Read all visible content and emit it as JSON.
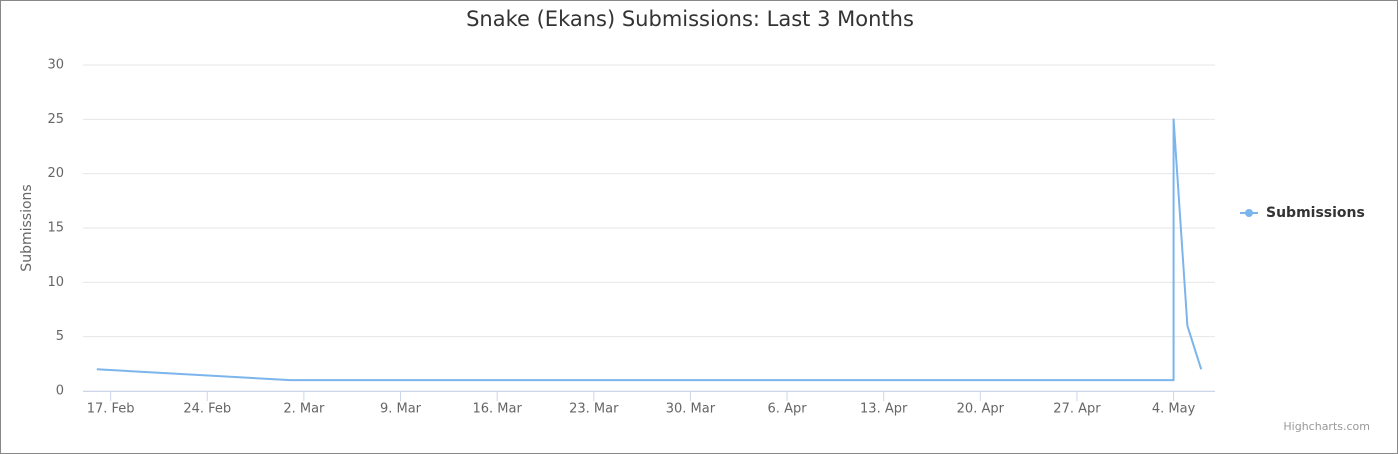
{
  "chart_data": {
    "type": "line",
    "title": "Snake (Ekans) Submissions: Last 3 Months",
    "y_label": "Submissions",
    "x": [
      "16. Feb",
      "1. Mar",
      "4. May",
      "4. May",
      "5. May",
      "6. May"
    ],
    "series": [
      {
        "name": "Submissions",
        "color": "#7cb5ec",
        "values": [
          2,
          1,
          1,
          25,
          6,
          2
        ]
      }
    ],
    "xlim": [
      "15. Feb",
      "7. May"
    ],
    "xticks": [
      "17. Feb",
      "24. Feb",
      "2. Mar",
      "9. Mar",
      "16. Mar",
      "23. Mar",
      "30. Mar",
      "6. Apr",
      "13. Apr",
      "20. Apr",
      "27. Apr",
      "4. May"
    ],
    "ylim": [
      0,
      30
    ],
    "yticks": [
      0,
      5,
      10,
      15,
      20,
      25,
      30
    ],
    "grid": true,
    "legend": "right",
    "credits": "Highcharts.com"
  }
}
